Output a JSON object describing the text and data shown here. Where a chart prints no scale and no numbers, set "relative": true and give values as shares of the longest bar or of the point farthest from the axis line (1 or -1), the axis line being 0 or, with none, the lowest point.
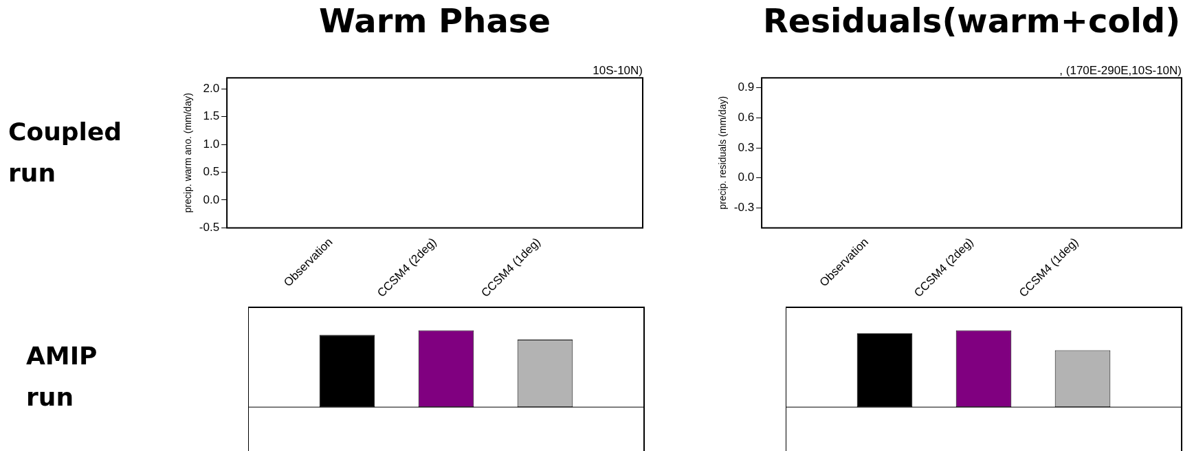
{
  "chart_data": [
    {
      "type": "bar",
      "title": "Warm Phase",
      "ylabel": "precip. warm ano. (mm/day)",
      "categories": [
        "Observation",
        "CCSM4 (2deg)",
        "CCSM4 (1deg)"
      ],
      "values": [
        null,
        null,
        null
      ],
      "ylim": [
        -0.5,
        2.2
      ],
      "yticks": [
        -0.5,
        {
          "value": 0,
          "label": "0.0"
        },
        0.5,
        {
          "value": 1,
          "label": "1.0"
        },
        1.5,
        {
          "value": 2,
          "label": "2.0"
        }
      ],
      "annotations": [
        "10S-10N)",
        "Coupled run"
      ]
    },
    {
      "type": "bar",
      "title": "Residuals(warm+cold)",
      "ylabel": "precip. residuals (mm/day)",
      "categories": [
        "Observation",
        "CCSM4 (2deg)",
        "CCSM4 (1deg)"
      ],
      "values": [
        null,
        null,
        null
      ],
      "ylim": [
        -0.5,
        1.0
      ],
      "yticks": [
        -0.3,
        {
          "value": 0,
          "label": "0.0"
        },
        0.3,
        0.6,
        0.9
      ],
      "annotations": [
        ", (170E-290E,10S-10N)"
      ]
    },
    {
      "type": "bar",
      "categories": [
        null,
        null,
        null
      ],
      "values": [
        0.94,
        1,
        0.88
      ],
      "colors": [
        "#000000",
        "#800080",
        "#b3b3b3"
      ],
      "relative": true,
      "annotations": [
        "AMIP run"
      ]
    },
    {
      "type": "bar",
      "categories": [
        null,
        null,
        null
      ],
      "values": [
        0.96,
        1,
        0.74
      ],
      "colors": [
        "#000000",
        "#800080",
        "#b3b3b3"
      ],
      "relative": true
    }
  ]
}
